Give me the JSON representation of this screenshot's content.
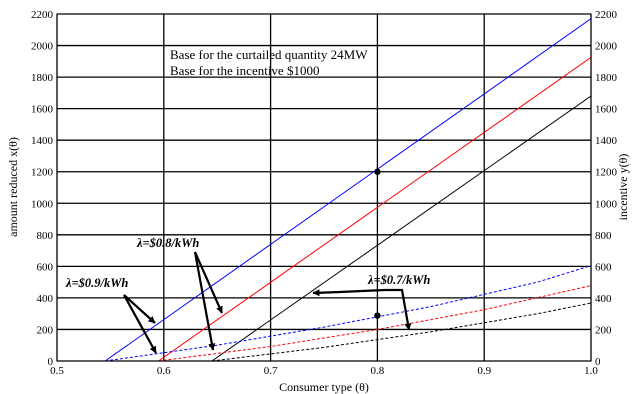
{
  "chart_data": {
    "type": "line",
    "xlabel": "Consumer type (θ)",
    "ylabel_left": "amount reduced x(θ)",
    "ylabel_right": "incentive y(θ)",
    "xlim": [
      0.5,
      1.0
    ],
    "ylim": [
      0,
      2200
    ],
    "x_ticks": [
      "0.5",
      "0.6",
      "0.7",
      "0.8",
      "0.9",
      "1.0"
    ],
    "y_ticks": [
      "0",
      "200",
      "400",
      "600",
      "800",
      "1000",
      "1200",
      "1400",
      "1600",
      "1800",
      "2000",
      "2200"
    ],
    "grid": true,
    "notes": [
      "Base for the curtailed quantity 24MW",
      "Base for the incentive $1000"
    ],
    "lambda_labels": [
      "λ=$0.9/kWh",
      "λ=$0.8/kWh",
      "λ=$0.7/kWh"
    ],
    "series": [
      {
        "style": "solid",
        "color": "#0000ff",
        "x": [
          0.545,
          1.0
        ],
        "y": [
          0,
          2170
        ]
      },
      {
        "style": "solid",
        "color": "#ff0000",
        "x": [
          0.595,
          1.0
        ],
        "y": [
          0,
          1925
        ]
      },
      {
        "style": "solid",
        "color": "#000000",
        "x": [
          0.645,
          1.0
        ],
        "y": [
          0,
          1680
        ]
      },
      {
        "style": "dashed",
        "color": "#0000ff",
        "x": [
          0.545,
          0.65,
          0.75,
          0.85,
          0.95,
          1.0
        ],
        "y": [
          0,
          100,
          215,
          345,
          500,
          605
        ]
      },
      {
        "style": "dashed",
        "color": "#ff0000",
        "x": [
          0.595,
          0.7,
          0.8,
          0.9,
          1.0
        ],
        "y": [
          0,
          92,
          200,
          325,
          478
        ]
      },
      {
        "style": "dashed",
        "color": "#000000",
        "x": [
          0.645,
          0.75,
          0.85,
          0.95,
          1.0
        ],
        "y": [
          0,
          86,
          185,
          300,
          368
        ]
      }
    ],
    "markers": [
      {
        "x": 0.8,
        "y": 1200
      },
      {
        "x": 0.8,
        "y": 288
      }
    ]
  }
}
